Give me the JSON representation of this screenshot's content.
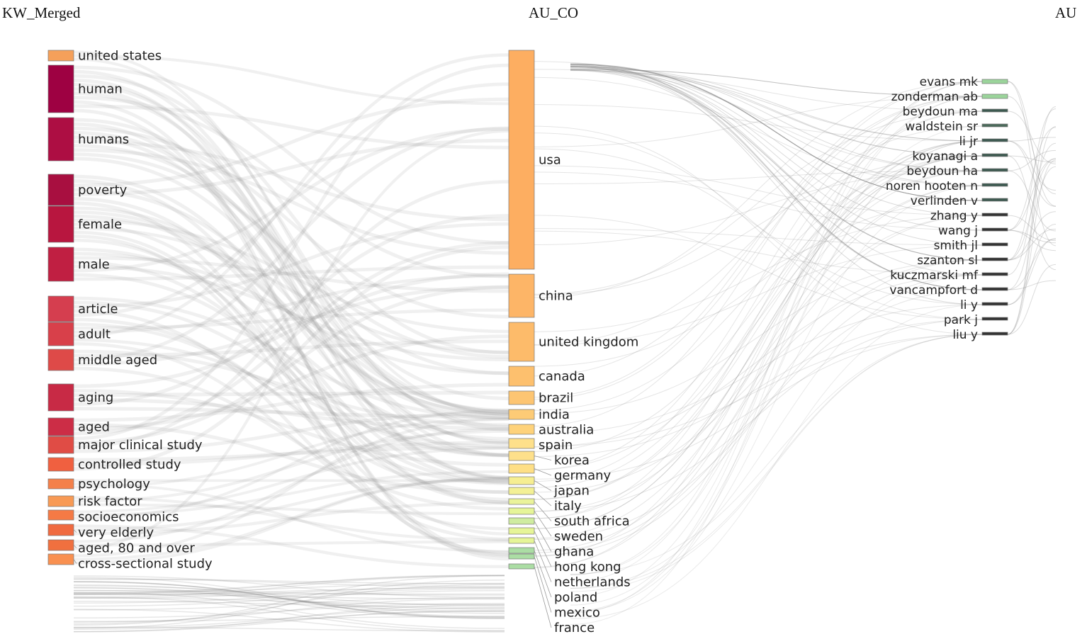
{
  "headers": {
    "left": "KW_Merged",
    "middle": "AU_CO",
    "right": "AU"
  },
  "left_nodes": [
    {
      "label": "united states",
      "color": "#f5a05a",
      "y": [
        71,
        86
      ]
    },
    {
      "label": "human",
      "color": "#9e0142",
      "y": [
        92,
        159
      ]
    },
    {
      "label": "humans",
      "color": "#ad0e43",
      "y": [
        166,
        227
      ]
    },
    {
      "label": "poverty",
      "color": "#a80f40",
      "y": [
        246,
        290
      ]
    },
    {
      "label": "female",
      "color": "#b8163f",
      "y": [
        291,
        342
      ]
    },
    {
      "label": "male",
      "color": "#c01f42",
      "y": [
        349,
        397
      ]
    },
    {
      "label": "article",
      "color": "#d53e4f",
      "y": [
        418,
        454
      ]
    },
    {
      "label": "adult",
      "color": "#d8404a",
      "y": [
        455,
        488
      ]
    },
    {
      "label": "middle aged",
      "color": "#de4a48",
      "y": [
        493,
        523
      ]
    },
    {
      "label": "aging",
      "color": "#c82a45",
      "y": [
        542,
        580
      ]
    },
    {
      "label": "aged",
      "color": "#cc2d46",
      "y": [
        590,
        615
      ]
    },
    {
      "label": "major clinical study",
      "color": "#e04c45",
      "y": [
        616,
        640
      ]
    },
    {
      "label": "controlled study",
      "color": "#f06040",
      "y": [
        646,
        665
      ]
    },
    {
      "label": "psychology",
      "color": "#f4804a",
      "y": [
        676,
        690
      ]
    },
    {
      "label": "risk factor",
      "color": "#f89a55",
      "y": [
        700,
        715
      ]
    },
    {
      "label": "socioeconomics",
      "color": "#f57a45",
      "y": [
        720,
        734
      ]
    },
    {
      "label": "very elderly",
      "color": "#f06a40",
      "y": [
        740,
        756
      ]
    },
    {
      "label": "aged, 80 and over",
      "color": "#f0703f",
      "y": [
        762,
        777
      ]
    },
    {
      "label": "cross-sectional study",
      "color": "#f99050",
      "y": [
        782,
        797
      ]
    }
  ],
  "middle_nodes": [
    {
      "label": "usa",
      "color": "#fdae61",
      "y": [
        71,
        380
      ]
    },
    {
      "label": "china",
      "color": "#fdb567",
      "y": [
        387,
        448
      ]
    },
    {
      "label": "united kingdom",
      "color": "#fdbb6a",
      "y": [
        455,
        510
      ]
    },
    {
      "label": "canada",
      "color": "#fdc06e",
      "y": [
        517,
        545
      ]
    },
    {
      "label": "brazil",
      "color": "#fdc572",
      "y": [
        552,
        571
      ]
    },
    {
      "label": "india",
      "color": "#fdcb76",
      "y": [
        578,
        592
      ]
    },
    {
      "label": "australia",
      "color": "#fed27a",
      "y": [
        599,
        613
      ]
    },
    {
      "label": "spain",
      "color": "#fee08b",
      "y": [
        619,
        633
      ]
    },
    {
      "label": "korea",
      "color": "#fee08b",
      "y": [
        637,
        650
      ]
    },
    {
      "label": "germany",
      "color": "#fedf86",
      "y": [
        655,
        668
      ]
    },
    {
      "label": "japan",
      "color": "#f6ee91",
      "y": [
        673,
        684
      ]
    },
    {
      "label": "italy",
      "color": "#f3f095",
      "y": [
        688,
        698
      ]
    },
    {
      "label": "south africa",
      "color": "#eaf39a",
      "y": [
        704,
        712
      ]
    },
    {
      "label": "sweden",
      "color": "#e6f598",
      "y": [
        717,
        726
      ]
    },
    {
      "label": "ghana",
      "color": "#cfeca0",
      "y": [
        731,
        740
      ]
    },
    {
      "label": "hong kong",
      "color": "#e6f598",
      "y": [
        745,
        754
      ]
    },
    {
      "label": "netherlands",
      "color": "#e6f598",
      "y": [
        759,
        767
      ]
    },
    {
      "label": "poland",
      "color": "#abdda4",
      "y": [
        773,
        781
      ]
    },
    {
      "label": "mexico",
      "color": "#abdda4",
      "y": [
        782,
        789
      ]
    },
    {
      "label": "france",
      "color": "#abdda4",
      "y": [
        796,
        803
      ]
    }
  ],
  "right_nodes": [
    {
      "label": "evans mk",
      "color": "#9bd49b"
    },
    {
      "label": "zonderman ab",
      "color": "#9bd49b"
    },
    {
      "label": "beydoun ma",
      "color": "#3d5a50"
    },
    {
      "label": "waldstein sr",
      "color": "#4a6a5a"
    },
    {
      "label": "li jr",
      "color": "#3d5a50"
    },
    {
      "label": "koyanagi a",
      "color": "#3d5a50"
    },
    {
      "label": "beydoun ha",
      "color": "#3d5a50"
    },
    {
      "label": "noren hooten n",
      "color": "#3d5a50"
    },
    {
      "label": "verlinden v",
      "color": "#3d5a50"
    },
    {
      "label": "zhang y",
      "color": "#333"
    },
    {
      "label": "wang j",
      "color": "#333"
    },
    {
      "label": "smith jl",
      "color": "#333"
    },
    {
      "label": "szanton sl",
      "color": "#333"
    },
    {
      "label": "kuczmarski mf",
      "color": "#333"
    },
    {
      "label": "vancampfort d",
      "color": "#333"
    },
    {
      "label": "li y",
      "color": "#333"
    },
    {
      "label": "park j",
      "color": "#333"
    },
    {
      "label": "liu y",
      "color": "#333"
    }
  ]
}
